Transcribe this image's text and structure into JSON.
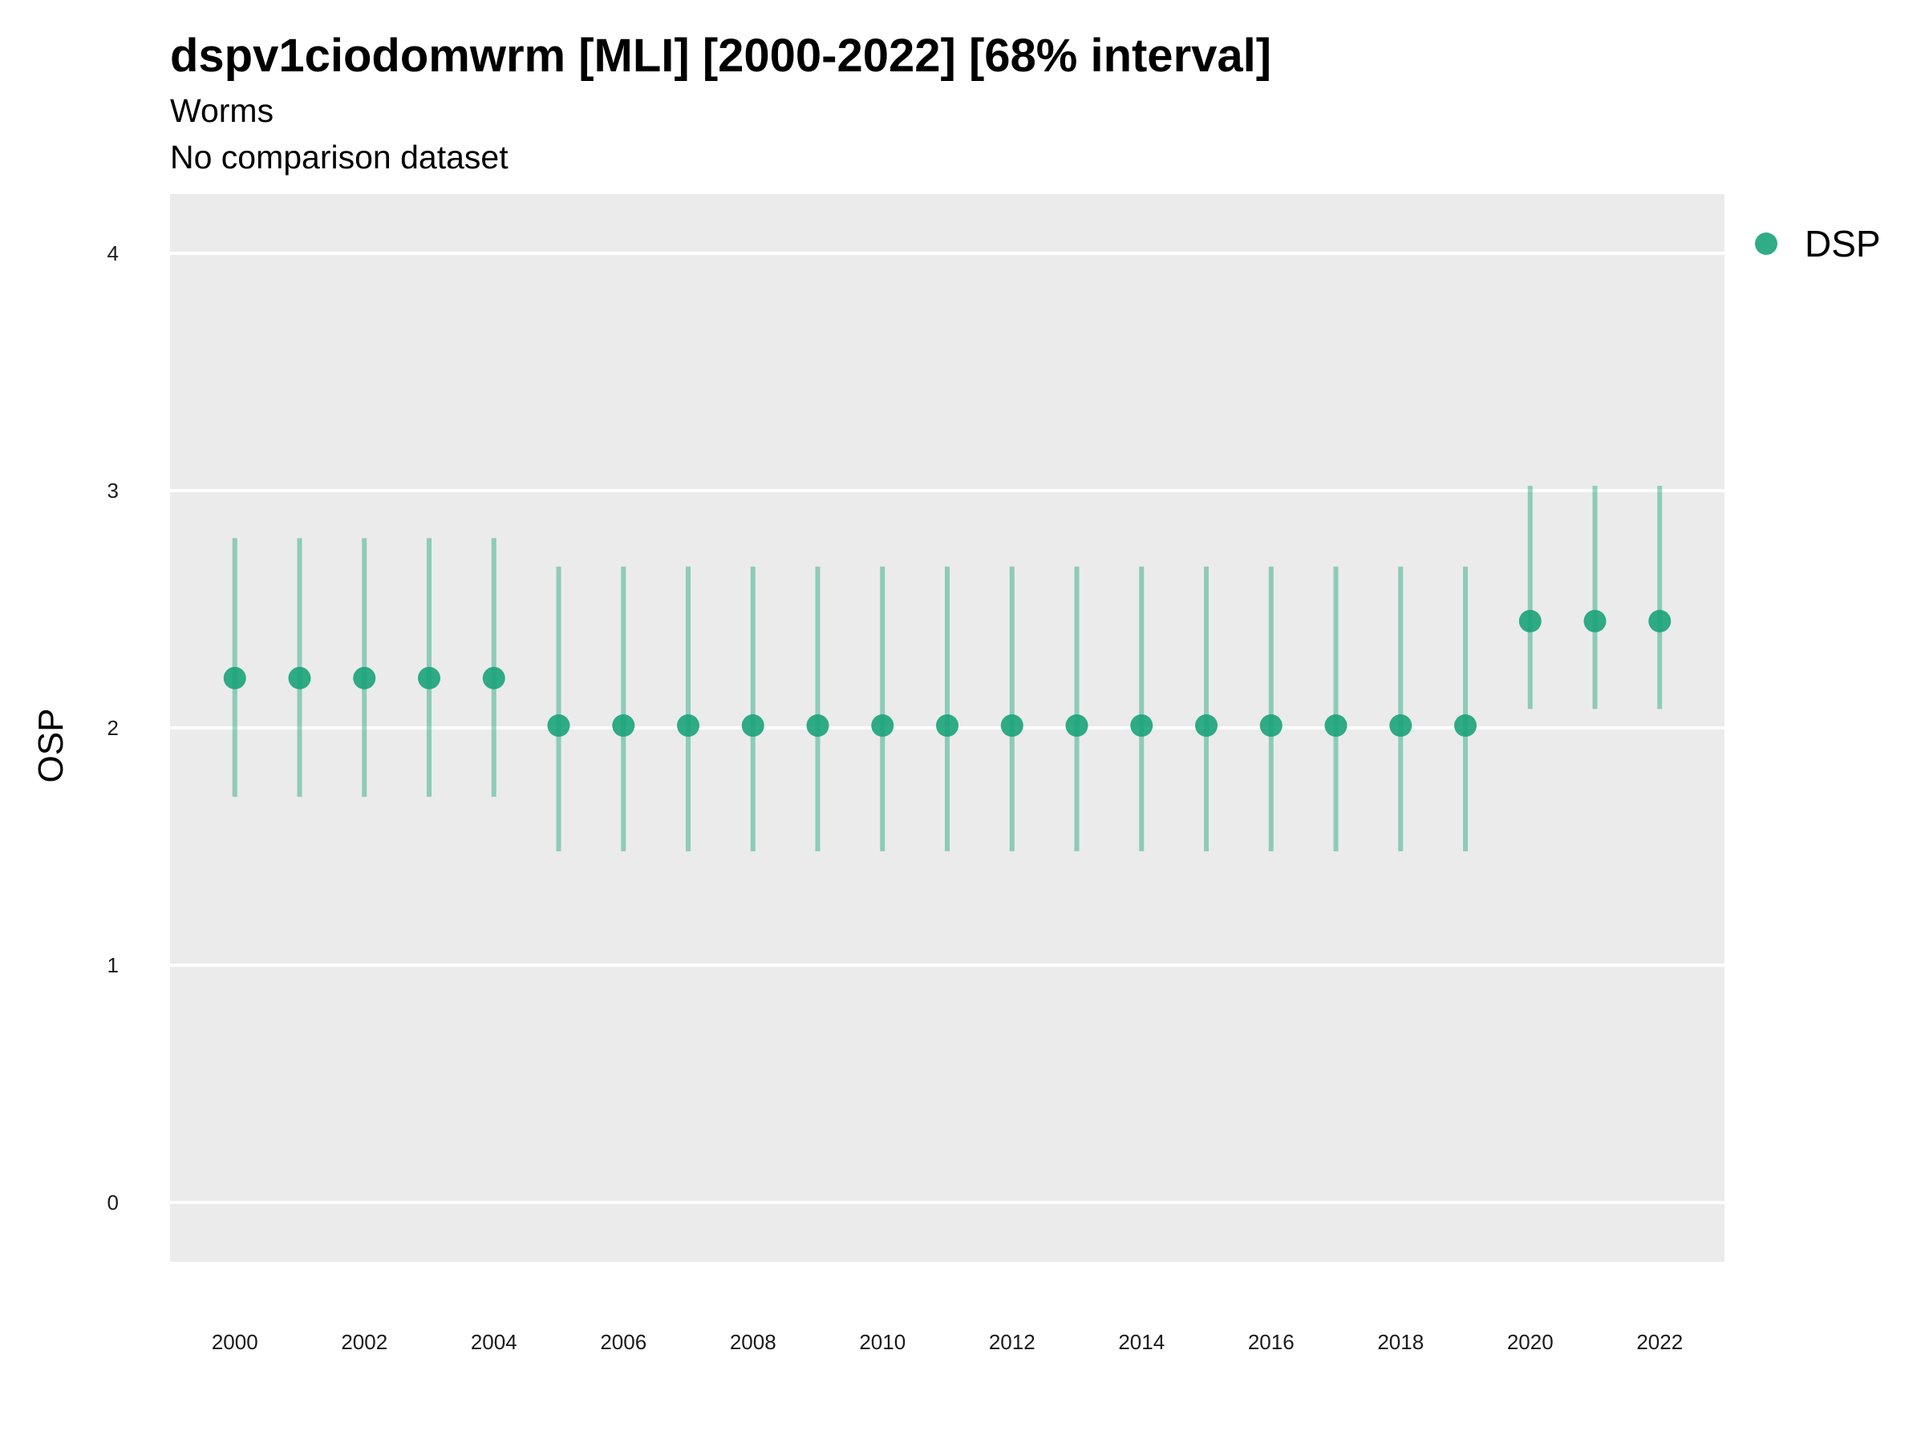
{
  "chart_data": {
    "type": "scatter",
    "title": "dspv1ciodomwrm [MLI] [2000-2022] [68% interval]",
    "subtitle": "Worms",
    "subtitle2": "No comparison dataset",
    "xlabel": "",
    "ylabel": "OSP",
    "ylim": [
      -0.25,
      4.25
    ],
    "xlim": [
      1999,
      2023
    ],
    "yticks": [
      "0",
      "1",
      "2",
      "3",
      "4"
    ],
    "xticks": [
      "2000",
      "2002",
      "2004",
      "2006",
      "2008",
      "2010",
      "2012",
      "2014",
      "2016",
      "2018",
      "2020",
      "2022"
    ],
    "grid": true,
    "legend_position": "right",
    "series": [
      {
        "name": "DSP",
        "color": "#1aa37a",
        "x": [
          2000,
          2001,
          2002,
          2003,
          2004,
          2005,
          2006,
          2007,
          2008,
          2009,
          2010,
          2011,
          2012,
          2013,
          2014,
          2015,
          2016,
          2017,
          2018,
          2019,
          2020,
          2021,
          2022
        ],
        "y": [
          2.21,
          2.21,
          2.21,
          2.21,
          2.21,
          2.01,
          2.01,
          2.01,
          2.01,
          2.01,
          2.01,
          2.01,
          2.01,
          2.01,
          2.01,
          2.01,
          2.01,
          2.01,
          2.01,
          2.01,
          2.45,
          2.45,
          2.45
        ],
        "lower": [
          1.71,
          1.71,
          1.71,
          1.71,
          1.71,
          1.48,
          1.48,
          1.48,
          1.48,
          1.48,
          1.48,
          1.48,
          1.48,
          1.48,
          1.48,
          1.48,
          1.48,
          1.48,
          1.48,
          1.48,
          2.08,
          2.08,
          2.08
        ],
        "upper": [
          2.8,
          2.8,
          2.8,
          2.8,
          2.8,
          2.68,
          2.68,
          2.68,
          2.68,
          2.68,
          2.68,
          2.68,
          2.68,
          2.68,
          2.68,
          2.68,
          2.68,
          2.68,
          2.68,
          2.68,
          3.02,
          3.02,
          3.02
        ]
      }
    ]
  }
}
